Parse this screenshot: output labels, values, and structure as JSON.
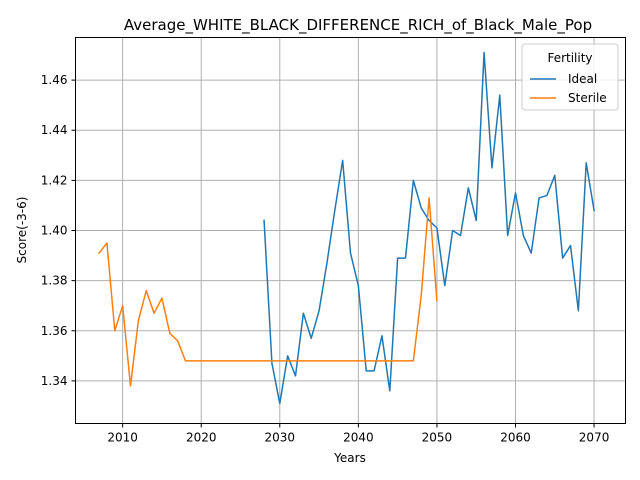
{
  "chart_data": {
    "type": "line",
    "title": "Average_WHITE_BLACK_DIFFERENCE_RICH_of_Black_Male_Pop",
    "xlabel": "Years",
    "ylabel": "Score(-3-6)",
    "xlim": [
      2004,
      2074
    ],
    "ylim": [
      1.323,
      1.477
    ],
    "xticks": [
      2010,
      2020,
      2030,
      2040,
      2050,
      2060,
      2070
    ],
    "yticks": [
      1.34,
      1.36,
      1.38,
      1.4,
      1.42,
      1.44,
      1.46
    ],
    "grid": true,
    "legend": {
      "title": "Fertility",
      "position": "top-right"
    },
    "series": [
      {
        "name": "Ideal",
        "color": "#1f77b4",
        "x": [
          2028,
          2029,
          2030,
          2031,
          2032,
          2033,
          2034,
          2035,
          2036,
          2037,
          2038,
          2039,
          2040,
          2041,
          2042,
          2043,
          2044,
          2045,
          2046,
          2047,
          2048,
          2049,
          2050,
          2051,
          2052,
          2053,
          2054,
          2055,
          2056,
          2057,
          2058,
          2059,
          2060,
          2061,
          2062,
          2063,
          2064,
          2065,
          2066,
          2067,
          2068,
          2069,
          2070
        ],
        "values": [
          1.404,
          1.347,
          1.331,
          1.35,
          1.342,
          1.367,
          1.357,
          1.368,
          1.387,
          1.408,
          1.428,
          1.391,
          1.378,
          1.344,
          1.344,
          1.358,
          1.336,
          1.389,
          1.389,
          1.42,
          1.409,
          1.404,
          1.401,
          1.378,
          1.4,
          1.398,
          1.417,
          1.404,
          1.471,
          1.425,
          1.454,
          1.398,
          1.415,
          1.398,
          1.391,
          1.413,
          1.414,
          1.422,
          1.389,
          1.394,
          1.368,
          1.427,
          1.408
        ]
      },
      {
        "name": "Sterile",
        "color": "#ff7f0e",
        "x": [
          2007,
          2008,
          2009,
          2010,
          2011,
          2012,
          2013,
          2014,
          2015,
          2016,
          2017,
          2018,
          2019,
          2020,
          2021,
          2022,
          2023,
          2024,
          2025,
          2026,
          2027,
          2028,
          2029,
          2030,
          2031,
          2032,
          2033,
          2034,
          2035,
          2036,
          2037,
          2038,
          2039,
          2040,
          2041,
          2042,
          2043,
          2044,
          2045,
          2046,
          2047,
          2048,
          2049,
          2050
        ],
        "values": [
          1.391,
          1.395,
          1.36,
          1.37,
          1.338,
          1.364,
          1.376,
          1.367,
          1.373,
          1.359,
          1.356,
          1.348,
          1.348,
          1.348,
          1.348,
          1.348,
          1.348,
          1.348,
          1.348,
          1.348,
          1.348,
          1.348,
          1.348,
          1.348,
          1.348,
          1.348,
          1.348,
          1.348,
          1.348,
          1.348,
          1.348,
          1.348,
          1.348,
          1.348,
          1.348,
          1.348,
          1.348,
          1.348,
          1.348,
          1.348,
          1.348,
          1.374,
          1.413,
          1.372
        ]
      }
    ]
  }
}
